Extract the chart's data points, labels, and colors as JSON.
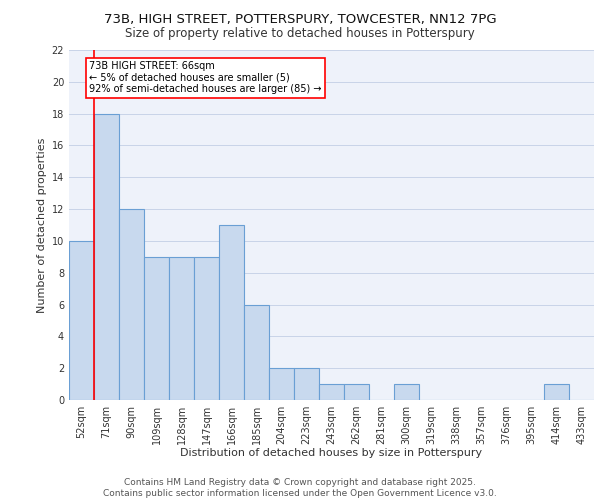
{
  "title_line1": "73B, HIGH STREET, POTTERSPURY, TOWCESTER, NN12 7PG",
  "title_line2": "Size of property relative to detached houses in Potterspury",
  "xlabel": "Distribution of detached houses by size in Potterspury",
  "ylabel": "Number of detached properties",
  "categories": [
    "52sqm",
    "71sqm",
    "90sqm",
    "109sqm",
    "128sqm",
    "147sqm",
    "166sqm",
    "185sqm",
    "204sqm",
    "223sqm",
    "243sqm",
    "262sqm",
    "281sqm",
    "300sqm",
    "319sqm",
    "338sqm",
    "357sqm",
    "376sqm",
    "395sqm",
    "414sqm",
    "433sqm"
  ],
  "values": [
    10,
    18,
    12,
    9,
    9,
    9,
    11,
    6,
    2,
    2,
    1,
    1,
    0,
    1,
    0,
    0,
    0,
    0,
    0,
    1,
    0
  ],
  "bar_color": "#c8d9ee",
  "bar_edge_color": "#6a9fd4",
  "bar_linewidth": 0.8,
  "grid_color": "#c8d4e8",
  "bg_color": "#eef2fa",
  "annotation_text": "73B HIGH STREET: 66sqm\n← 5% of detached houses are smaller (5)\n92% of semi-detached houses are larger (85) →",
  "annotation_box_color": "white",
  "annotation_box_edge_color": "red",
  "marker_line_color": "red",
  "ylim": [
    0,
    22
  ],
  "yticks": [
    0,
    2,
    4,
    6,
    8,
    10,
    12,
    14,
    16,
    18,
    20,
    22
  ],
  "footer_text": "Contains HM Land Registry data © Crown copyright and database right 2025.\nContains public sector information licensed under the Open Government Licence v3.0.",
  "title_fontsize": 9.5,
  "subtitle_fontsize": 8.5,
  "axis_label_fontsize": 8,
  "tick_fontsize": 7,
  "annotation_fontsize": 7,
  "footer_fontsize": 6.5
}
